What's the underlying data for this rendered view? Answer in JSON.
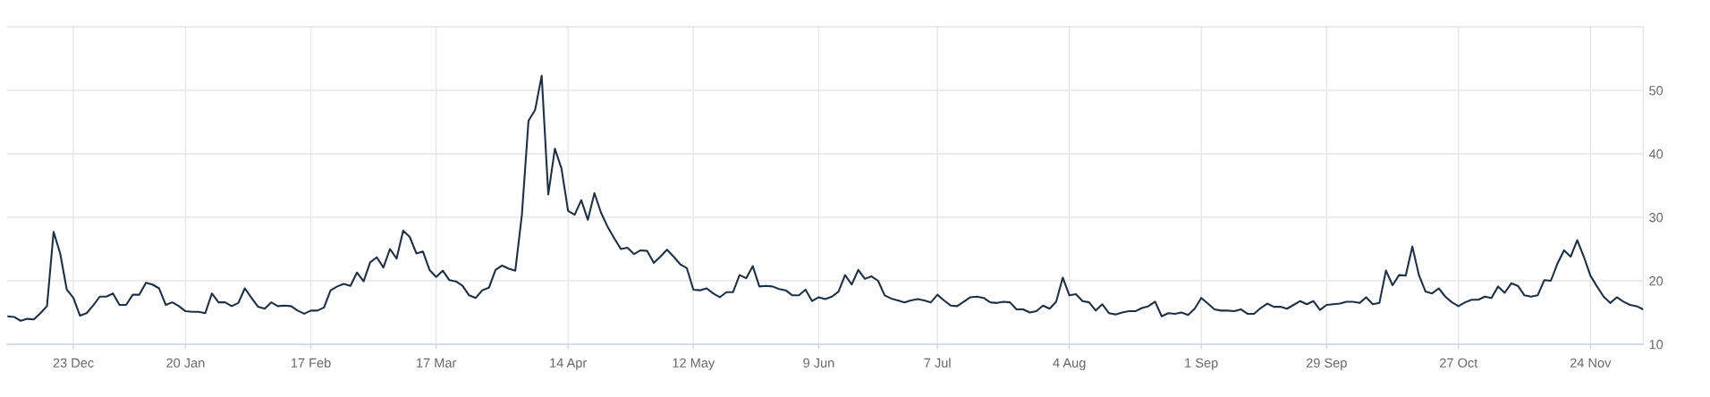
{
  "chart_data": {
    "type": "line",
    "color": "#1e3048",
    "grid": true,
    "categories": [
      null,
      null,
      null,
      null,
      null,
      null,
      null,
      null,
      null,
      null,
      "23 Dec",
      null,
      null,
      null,
      null,
      null,
      null,
      null,
      null,
      null,
      null,
      null,
      null,
      null,
      null,
      null,
      null,
      "20 Jan",
      null,
      null,
      null,
      null,
      null,
      null,
      null,
      null,
      null,
      null,
      null,
      null,
      null,
      null,
      null,
      null,
      null,
      null,
      "17 Feb",
      null,
      null,
      null,
      null,
      null,
      null,
      null,
      null,
      null,
      null,
      null,
      null,
      null,
      null,
      null,
      null,
      null,
      null,
      "17 Mar",
      null,
      null,
      null,
      null,
      null,
      null,
      null,
      null,
      null,
      null,
      null,
      null,
      null,
      null,
      null,
      null,
      null,
      null,
      null,
      "14 Apr",
      null,
      null,
      null,
      null,
      null,
      null,
      null,
      null,
      null,
      null,
      null,
      null,
      null,
      null,
      null,
      null,
      null,
      null,
      "12 May",
      null,
      null,
      null,
      null,
      null,
      null,
      null,
      null,
      null,
      null,
      null,
      null,
      null,
      null,
      null,
      null,
      null,
      null,
      "9 Jun",
      null,
      null,
      null,
      null,
      null,
      null,
      null,
      null,
      null,
      null,
      null,
      null,
      null,
      null,
      null,
      null,
      null,
      "7 Jul",
      null,
      null,
      null,
      null,
      null,
      null,
      null,
      null,
      null,
      null,
      null,
      null,
      null,
      null,
      null,
      null,
      null,
      null,
      null,
      "4 Aug",
      null,
      null,
      null,
      null,
      null,
      null,
      null,
      null,
      null,
      null,
      null,
      null,
      null,
      null,
      null,
      null,
      null,
      null,
      null,
      "1 Sep",
      null,
      null,
      null,
      null,
      null,
      null,
      null,
      null,
      null,
      null,
      null,
      null,
      null,
      null,
      null,
      null,
      null,
      null,
      "29 Sep",
      null,
      null,
      null,
      null,
      null,
      null,
      null,
      null,
      null,
      null,
      null,
      null,
      null,
      null,
      null,
      null,
      null,
      null,
      null,
      "27 Oct",
      null,
      null,
      null,
      null,
      null,
      null,
      null,
      null,
      null,
      null,
      null,
      null,
      null,
      null,
      null,
      null,
      null,
      null,
      null,
      "24 Nov",
      null,
      null,
      null,
      null,
      null,
      null,
      null,
      null
    ],
    "values": [
      14.4,
      14.3,
      13.7,
      14.0,
      13.9,
      14.9,
      16.0,
      27.7,
      24.3,
      18.6,
      17.3,
      14.5,
      14.9,
      16.1,
      17.5,
      17.5,
      18.0,
      16.2,
      16.2,
      17.8,
      17.8,
      19.7,
      19.4,
      18.8,
      16.2,
      16.6,
      16.0,
      15.2,
      15.1,
      15.1,
      14.9,
      18.0,
      16.6,
      16.6,
      16.0,
      16.5,
      18.8,
      17.3,
      15.9,
      15.6,
      16.6,
      16.0,
      16.1,
      16.0,
      15.3,
      14.8,
      15.3,
      15.3,
      15.8,
      18.5,
      19.1,
      19.5,
      19.2,
      21.3,
      19.9,
      22.9,
      23.7,
      22.1,
      25.0,
      23.5,
      27.9,
      26.9,
      24.3,
      24.6,
      21.7,
      20.6,
      21.6,
      20.1,
      19.9,
      19.2,
      17.7,
      17.3,
      18.5,
      18.9,
      21.7,
      22.4,
      21.9,
      21.6,
      30.4,
      45.2,
      46.9,
      52.3,
      33.6,
      40.8,
      37.7,
      31.0,
      30.4,
      32.7,
      29.6,
      33.8,
      30.7,
      28.5,
      26.7,
      25.0,
      25.2,
      24.2,
      24.8,
      24.7,
      22.8,
      23.8,
      24.9,
      23.8,
      22.6,
      22.0,
      18.6,
      18.5,
      18.8,
      18.0,
      17.4,
      18.2,
      18.2,
      20.9,
      20.4,
      22.3,
      19.1,
      19.2,
      19.1,
      18.7,
      18.5,
      17.7,
      17.7,
      18.6,
      16.8,
      17.4,
      17.1,
      17.5,
      18.3,
      20.9,
      19.4,
      21.7,
      20.3,
      20.7,
      20.0,
      17.7,
      17.2,
      16.9,
      16.6,
      16.9,
      17.1,
      16.9,
      16.6,
      17.8,
      16.9,
      16.1,
      16.0,
      16.7,
      17.4,
      17.5,
      17.3,
      16.6,
      16.5,
      16.7,
      16.6,
      15.5,
      15.5,
      15.0,
      15.2,
      16.1,
      15.6,
      16.7,
      20.5,
      17.7,
      17.9,
      16.8,
      16.6,
      15.3,
      16.3,
      14.9,
      14.7,
      15.0,
      15.2,
      15.2,
      15.7,
      16.0,
      16.7,
      14.4,
      14.9,
      14.8,
      15.0,
      14.6,
      15.6,
      17.3,
      16.4,
      15.5,
      15.3,
      15.3,
      15.2,
      15.5,
      14.8,
      14.8,
      15.7,
      16.4,
      15.9,
      15.9,
      15.6,
      16.2,
      16.8,
      16.3,
      16.8,
      15.4,
      16.2,
      16.3,
      16.4,
      16.7,
      16.7,
      16.5,
      17.4,
      16.3,
      16.5,
      21.6,
      19.3,
      20.9,
      20.8,
      25.4,
      20.9,
      18.3,
      18.0,
      18.8,
      17.5,
      16.6,
      16.0,
      16.6,
      17.0,
      17.0,
      17.5,
      17.3,
      19.1,
      18.1,
      19.6,
      19.2,
      17.7,
      17.5,
      17.7,
      20.1,
      20.0,
      22.7,
      24.8,
      23.8,
      26.4,
      23.8,
      20.8,
      19.1,
      17.5,
      16.5,
      17.4,
      16.7,
      16.2,
      16.0,
      15.5
    ],
    "ylim": [
      10,
      60
    ],
    "yticks": [
      10,
      20,
      30,
      40,
      50,
      {
        "value": 60,
        "label": null
      }
    ]
  }
}
